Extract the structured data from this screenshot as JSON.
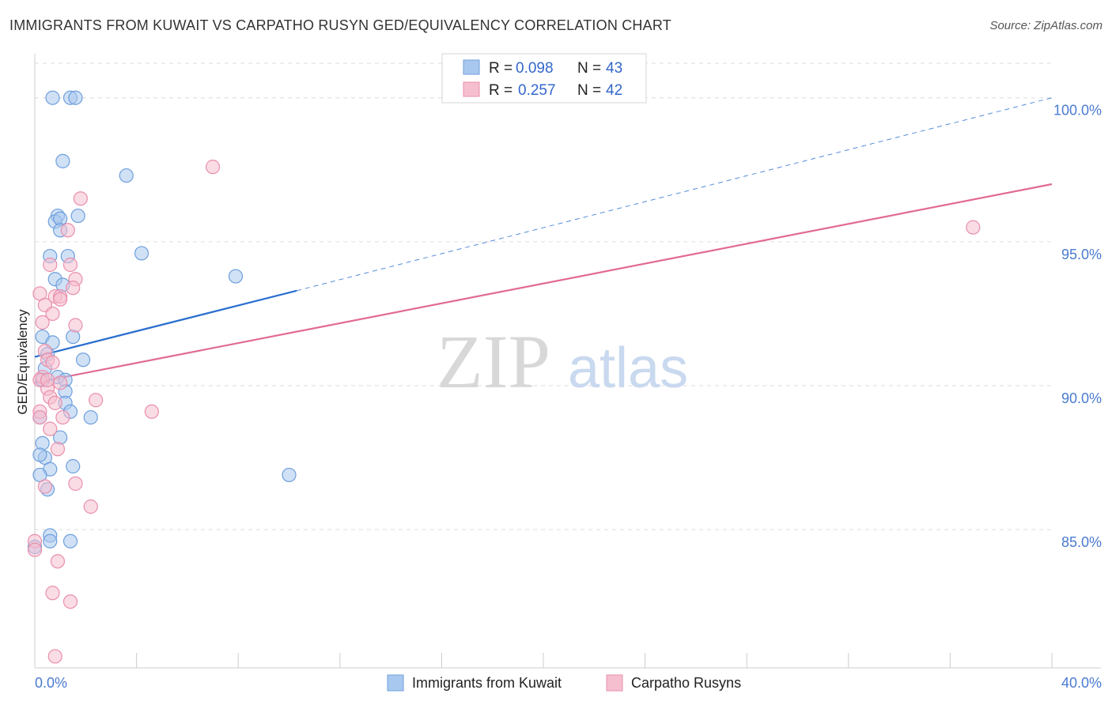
{
  "title": "IMMIGRANTS FROM KUWAIT VS CARPATHO RUSYN GED/EQUIVALENCY CORRELATION CHART",
  "source": "Source: ZipAtlas.com",
  "watermark": {
    "zip": "ZIP",
    "atlas": "atlas"
  },
  "colors": {
    "blue_fill": "#a9c8ef",
    "blue_stroke": "#6e9fdc",
    "blue_line": "#2a6fcf",
    "pink_fill": "#f6bfd0",
    "pink_stroke": "#e98fac",
    "pink_line": "#e26a93",
    "grid": "#dddddd",
    "tick_text": "#4a7bd0"
  },
  "legend": {
    "rows": [
      {
        "r_label": "R =",
        "r_value": "0.098",
        "n_label": "N =",
        "n_value": "43"
      },
      {
        "r_label": "R =",
        "r_value": "0.257",
        "n_label": "N =",
        "n_value": "42"
      }
    ]
  },
  "chart_data": {
    "type": "scatter",
    "title": "IMMIGRANTS FROM KUWAIT VS CARPATHO RUSYN GED/EQUIVALENCY CORRELATION CHART",
    "xlabel": "",
    "ylabel": "GED/Equivalency",
    "xlim": [
      0,
      40
    ],
    "ylim": [
      80.2,
      101.2
    ],
    "x_ticks": [
      0,
      4,
      8,
      12,
      16,
      20,
      24,
      28,
      32,
      36,
      40
    ],
    "x_tick_labels": {
      "0": "0.0%",
      "40": "40.0%"
    },
    "y_ticks": [
      85,
      90,
      95,
      100
    ],
    "y_tick_labels": [
      "85.0%",
      "90.0%",
      "95.0%",
      "100.0%"
    ],
    "grid": true,
    "legend_position": "top-center",
    "series": [
      {
        "name": "Immigrants from Kuwait",
        "r": 0.098,
        "n": 43,
        "trend": {
          "x": [
            0,
            10.3
          ],
          "y": [
            91.0,
            93.3
          ],
          "dashed_to": [
            40,
            100.0
          ]
        },
        "points": [
          [
            0.7,
            100.0
          ],
          [
            1.4,
            100.0
          ],
          [
            1.6,
            100.0
          ],
          [
            1.1,
            97.8
          ],
          [
            3.6,
            97.3
          ],
          [
            0.9,
            95.9
          ],
          [
            1.7,
            95.9
          ],
          [
            0.8,
            95.7
          ],
          [
            1.0,
            95.8
          ],
          [
            1.0,
            95.4
          ],
          [
            4.2,
            94.6
          ],
          [
            0.6,
            94.5
          ],
          [
            1.3,
            94.5
          ],
          [
            7.9,
            93.8
          ],
          [
            0.8,
            93.7
          ],
          [
            1.1,
            93.5
          ],
          [
            0.3,
            91.7
          ],
          [
            1.5,
            91.7
          ],
          [
            0.7,
            91.5
          ],
          [
            0.5,
            91.1
          ],
          [
            1.9,
            90.9
          ],
          [
            0.4,
            90.6
          ],
          [
            0.9,
            90.3
          ],
          [
            1.2,
            90.2
          ],
          [
            0.3,
            90.2
          ],
          [
            1.2,
            89.8
          ],
          [
            1.2,
            89.4
          ],
          [
            1.4,
            89.1
          ],
          [
            2.2,
            88.9
          ],
          [
            0.2,
            88.9
          ],
          [
            0.3,
            88.0
          ],
          [
            1.0,
            88.2
          ],
          [
            0.4,
            87.5
          ],
          [
            0.2,
            87.6
          ],
          [
            1.5,
            87.2
          ],
          [
            0.6,
            87.1
          ],
          [
            0.2,
            86.9
          ],
          [
            10.0,
            86.9
          ],
          [
            0.5,
            86.4
          ],
          [
            0.6,
            84.8
          ],
          [
            0.6,
            84.6
          ],
          [
            1.4,
            84.6
          ],
          [
            0.0,
            84.4
          ]
        ]
      },
      {
        "name": "Carpatho Rusyns",
        "r": 0.257,
        "n": 42,
        "trend": {
          "x": [
            0,
            40
          ],
          "y": [
            90.1,
            97.0
          ]
        },
        "points": [
          [
            7.0,
            97.6
          ],
          [
            1.8,
            96.5
          ],
          [
            36.9,
            95.5
          ],
          [
            1.3,
            95.4
          ],
          [
            0.6,
            94.2
          ],
          [
            1.4,
            94.2
          ],
          [
            1.6,
            93.7
          ],
          [
            1.5,
            93.4
          ],
          [
            0.2,
            93.2
          ],
          [
            0.8,
            93.1
          ],
          [
            1.0,
            93.1
          ],
          [
            1.0,
            93.0
          ],
          [
            0.4,
            92.8
          ],
          [
            0.7,
            92.5
          ],
          [
            0.3,
            92.2
          ],
          [
            1.6,
            92.1
          ],
          [
            0.4,
            91.2
          ],
          [
            0.5,
            90.9
          ],
          [
            0.7,
            90.8
          ],
          [
            0.3,
            90.3
          ],
          [
            0.2,
            90.2
          ],
          [
            0.5,
            89.9
          ],
          [
            0.6,
            89.6
          ],
          [
            0.8,
            89.4
          ],
          [
            2.4,
            89.5
          ],
          [
            4.6,
            89.1
          ],
          [
            0.2,
            89.1
          ],
          [
            1.1,
            88.9
          ],
          [
            0.2,
            88.9
          ],
          [
            0.6,
            88.5
          ],
          [
            0.9,
            87.8
          ],
          [
            0.4,
            86.5
          ],
          [
            1.6,
            86.6
          ],
          [
            2.2,
            85.8
          ],
          [
            0.0,
            84.6
          ],
          [
            0.0,
            84.3
          ],
          [
            0.9,
            83.9
          ],
          [
            0.7,
            82.8
          ],
          [
            1.4,
            82.5
          ],
          [
            0.8,
            80.6
          ],
          [
            0.5,
            90.2
          ],
          [
            1.0,
            90.1
          ]
        ]
      }
    ]
  }
}
